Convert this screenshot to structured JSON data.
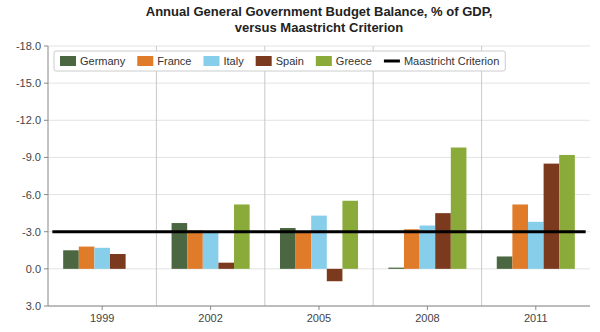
{
  "chart_data": {
    "type": "bar",
    "title": "Annual General Government Budget Balance, % of GDP,\nversus Maastricht Criterion",
    "categories": [
      "1999",
      "2002",
      "2005",
      "2008",
      "2011"
    ],
    "series": [
      {
        "name": "Germany",
        "color": "#4a6741",
        "values": [
          -1.5,
          -3.7,
          -3.3,
          -0.1,
          -1.0
        ]
      },
      {
        "name": "France",
        "color": "#e07b2a",
        "values": [
          -1.8,
          -3.1,
          -3.0,
          -3.2,
          -5.2
        ]
      },
      {
        "name": "Italy",
        "color": "#87ceeb",
        "values": [
          -1.7,
          -3.0,
          -4.3,
          -3.5,
          -3.8
        ]
      },
      {
        "name": "Spain",
        "color": "#7b3a1e",
        "values": [
          -1.2,
          -0.5,
          1.0,
          -4.5,
          -8.5
        ]
      },
      {
        "name": "Greece",
        "color": "#8aaa3a",
        "values": [
          0.0,
          -5.2,
          -5.5,
          -9.8,
          -9.2
        ]
      }
    ],
    "reference_line": {
      "value": -3.0,
      "label": "Maastricht Criterion",
      "color": "#000000"
    },
    "ylim": [
      3.0,
      -18.0
    ],
    "yticks": [
      {
        "value": -18.0,
        "label": "-18.0"
      },
      {
        "value": -15.0,
        "label": "-15.0"
      },
      {
        "value": -12.0,
        "label": "-12.0"
      },
      {
        "value": -9.0,
        "label": "-9.0"
      },
      {
        "value": -6.0,
        "label": "-6.0"
      },
      {
        "value": -3.0,
        "label": "-3.0"
      },
      {
        "value": 0.0,
        "label": "0.0"
      },
      {
        "value": 3.0,
        "label": "3.0"
      }
    ],
    "grid": true,
    "legend": "top-left"
  }
}
